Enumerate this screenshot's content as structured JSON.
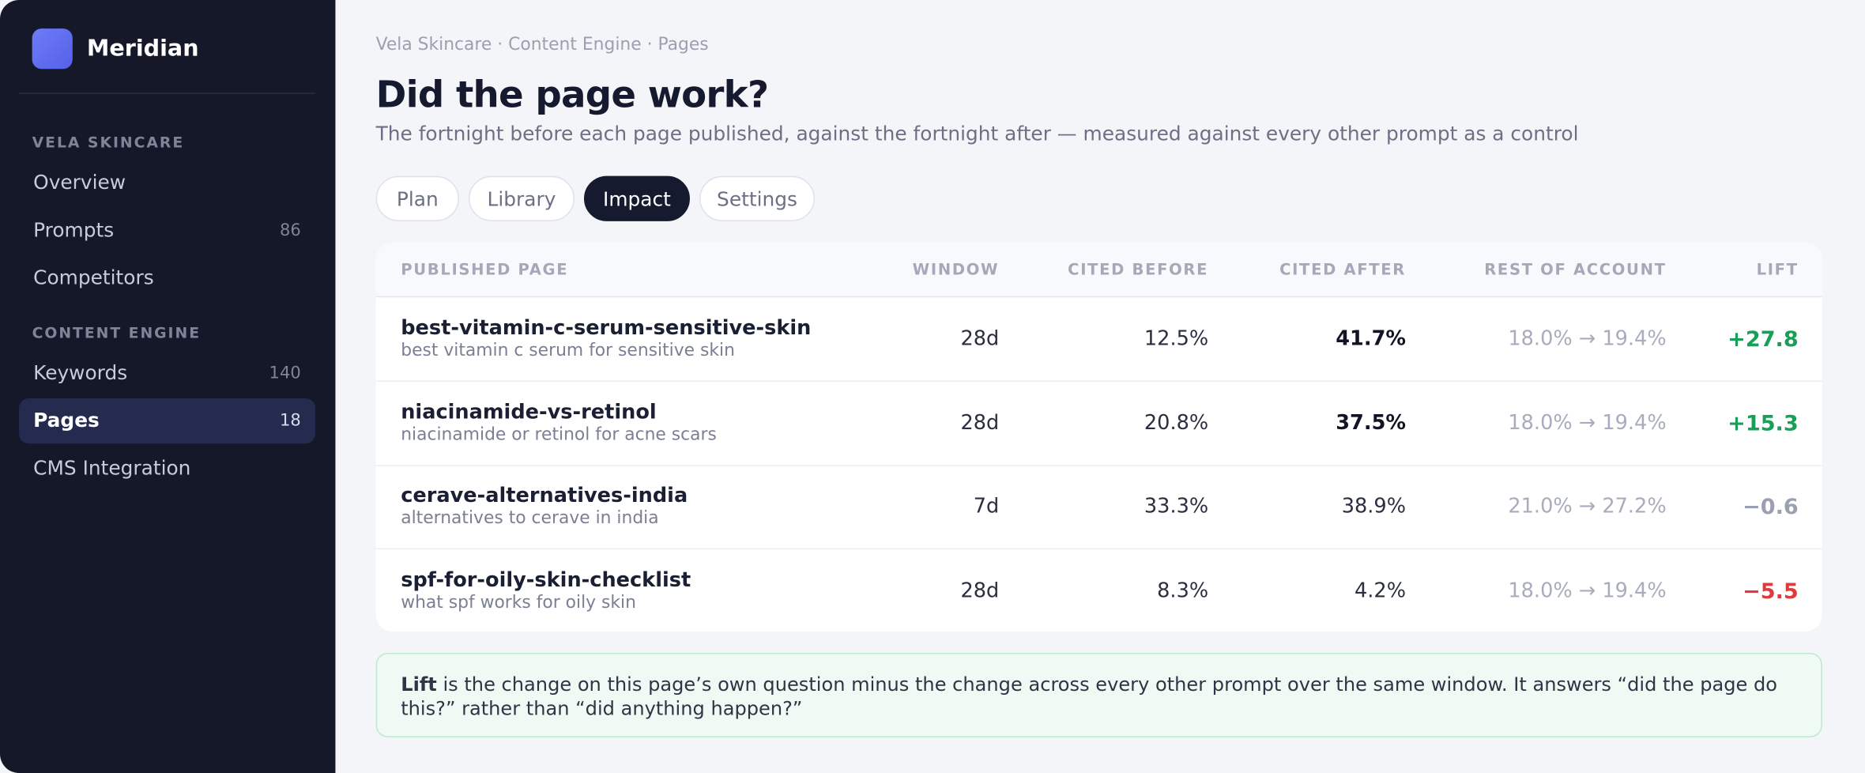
{
  "sidebar": {
    "brand": "Meridian",
    "groups": [
      {
        "label": "VELA SKINCARE",
        "items": [
          {
            "label": "Overview"
          },
          {
            "label": "Prompts",
            "count": "86"
          },
          {
            "label": "Competitors"
          }
        ]
      },
      {
        "label": "CONTENT ENGINE",
        "items": [
          {
            "label": "Keywords",
            "count": "140"
          },
          {
            "label": "Pages",
            "count": "18",
            "active": true
          },
          {
            "label": "CMS Integration"
          }
        ]
      }
    ]
  },
  "header": {
    "breadcrumb": "Vela Skincare · Content Engine · Pages",
    "title": "Did the page work?",
    "subtitle": "The fortnight before each page published, against the fortnight after — measured against every other prompt as a control"
  },
  "tabs": [
    {
      "label": "Plan"
    },
    {
      "label": "Library"
    },
    {
      "label": "Impact",
      "active": true
    },
    {
      "label": "Settings"
    }
  ],
  "table": {
    "columns": [
      "Published page",
      "Window",
      "Cited before",
      "Cited after",
      "Rest of account",
      "Lift"
    ],
    "rows": [
      {
        "page": "best-vitamin-c-serum-sensitive-skin",
        "query": "best vitamin c serum for sensitive skin",
        "window": "28d",
        "before": "12.5%",
        "after": "41.7%",
        "after_bold": true,
        "rest": "18.0% → 19.4%",
        "lift": "+27.8",
        "lift_color": "#18a058"
      },
      {
        "page": "niacinamide-vs-retinol",
        "query": "niacinamide or retinol for acne scars",
        "window": "28d",
        "before": "20.8%",
        "after": "37.5%",
        "after_bold": true,
        "rest": "18.0% → 19.4%",
        "lift": "+15.3",
        "lift_color": "#18a058"
      },
      {
        "page": "cerave-alternatives-india",
        "query": "alternatives to cerave in india",
        "window": "7d",
        "before": "33.3%",
        "after": "38.9%",
        "after_bold": false,
        "rest": "21.0% → 27.2%",
        "lift": "−0.6",
        "lift_color": "#9aa0b2"
      },
      {
        "page": "spf-for-oily-skin-checklist",
        "query": "what spf works for oily skin",
        "window": "28d",
        "before": "8.3%",
        "after": "4.2%",
        "after_bold": false,
        "rest": "18.0% → 19.4%",
        "lift": "−5.5",
        "lift_color": "#e0393e"
      }
    ]
  },
  "note": {
    "term": "Lift",
    "text": " is the change on this page’s own question minus the change across every other prompt over the same window. It answers “did the page do this?” rather than “did anything happen?”"
  }
}
